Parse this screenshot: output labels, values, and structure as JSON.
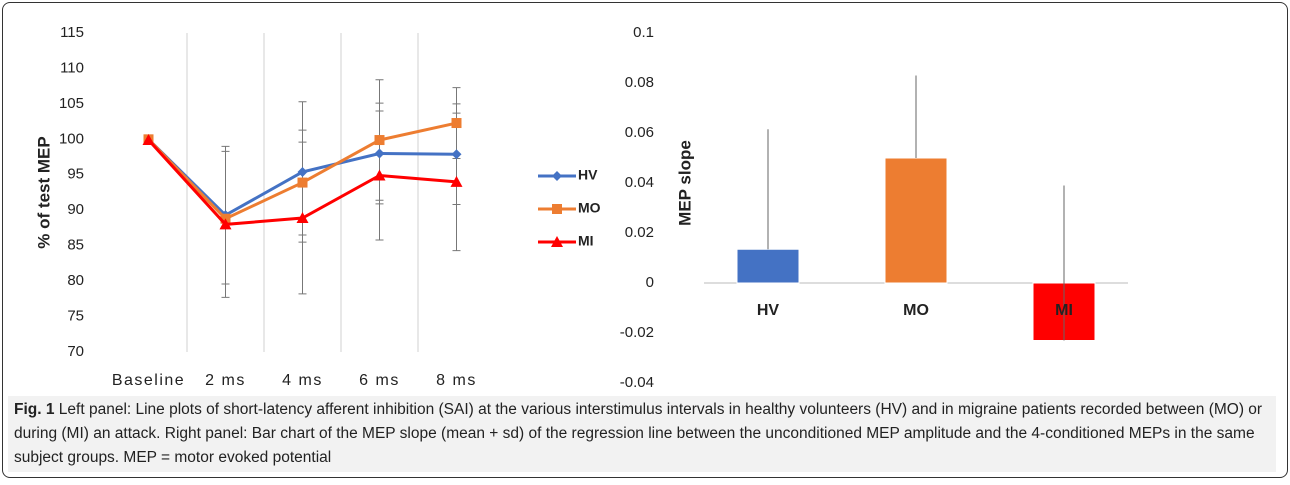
{
  "chart_data": [
    {
      "type": "line",
      "y_label": "% of test MEP",
      "categories": [
        "Baseline",
        "2 ms",
        "4 ms",
        "6 ms",
        "8 ms"
      ],
      "ylim": [
        70,
        115
      ],
      "yticks": [
        70,
        75,
        80,
        85,
        90,
        95,
        100,
        105,
        110,
        115
      ],
      "series": [
        {
          "name": "HV",
          "color": "#4472c4",
          "marker": "diamond",
          "values": [
            100,
            89.3,
            95.4,
            98,
            97.9
          ],
          "errors": [
            null,
            9.7,
            9.9,
            7.1,
            7.1
          ]
        },
        {
          "name": "MO",
          "color": "#ed7d31",
          "marker": "square",
          "values": [
            100,
            88.8,
            93.9,
            99.9,
            102.3
          ],
          "errors": [
            null,
            null,
            7.4,
            8.5,
            5
          ]
        },
        {
          "name": "MI",
          "color": "#ff0000",
          "marker": "triangle",
          "values": [
            99.9,
            88,
            88.9,
            94.9,
            94
          ],
          "errors": [
            null,
            10.3,
            10.7,
            9.1,
            9.7
          ]
        }
      ]
    },
    {
      "type": "bar",
      "y_label": "MEP slope",
      "categories": [
        "HV",
        "MO",
        "MI"
      ],
      "values": [
        0.0135,
        0.05,
        -0.023
      ],
      "errors": [
        0.048,
        0.033,
        0.062
      ],
      "colors": [
        "#4472c4",
        "#ed7d31",
        "#ff0000"
      ],
      "ylim": [
        -0.04,
        0.1
      ],
      "yticks": [
        -0.04,
        -0.02,
        0,
        0.02,
        0.04,
        0.06,
        0.08,
        0.1
      ]
    }
  ],
  "caption": {
    "label": "Fig. 1",
    "text": "Left panel: Line plots of short-latency afferent inhibition (SAI) at the various interstimulus intervals in healthy volunteers (HV) and in migraine patients recorded between (MO) or during (MI) an attack. Right panel: Bar chart of the MEP slope (mean + sd) of the regression line between the unconditioned MEP amplitude and the 4-conditioned MEPs in the same subject groups. MEP = motor evoked potential"
  }
}
